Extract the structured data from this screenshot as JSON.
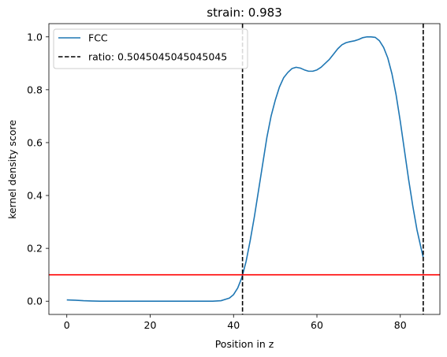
{
  "chart_data": {
    "type": "line",
    "title": "strain: 0.983",
    "xlabel": "Position in z",
    "ylabel": "kernel density score",
    "xlim": [
      -4.3,
      89.5
    ],
    "ylim": [
      -0.05,
      1.05
    ],
    "xticks": [
      0,
      20,
      40,
      60,
      80
    ],
    "yticks": [
      0.0,
      0.2,
      0.4,
      0.6,
      0.8,
      1.0
    ],
    "xtick_labels": [
      "0",
      "20",
      "40",
      "60",
      "80"
    ],
    "ytick_labels": [
      "0.0",
      "0.2",
      "0.4",
      "0.6",
      "0.8",
      "1.0"
    ],
    "grid": false,
    "legend_position": "top-left",
    "series": [
      {
        "name": "FCC",
        "color": "#1f77b4",
        "x": [
          0,
          2,
          4,
          6,
          8,
          10,
          15,
          20,
          25,
          30,
          35,
          37,
          39,
          40,
          41,
          42,
          43,
          44,
          45,
          46,
          47,
          48,
          49,
          50,
          51,
          52,
          53,
          54,
          55,
          56,
          57,
          58,
          59,
          60,
          61,
          62,
          63,
          64,
          65,
          66,
          67,
          68,
          69,
          70,
          71,
          72,
          73,
          74,
          75,
          76,
          77,
          78,
          79,
          80,
          81,
          82,
          83,
          84,
          85,
          85.5
        ],
        "y": [
          0.005,
          0.004,
          0.002,
          0.001,
          0.0,
          0.0,
          0.0,
          0.0,
          0.0,
          0.0,
          0.0,
          0.002,
          0.012,
          0.025,
          0.05,
          0.09,
          0.15,
          0.23,
          0.32,
          0.42,
          0.52,
          0.62,
          0.7,
          0.76,
          0.81,
          0.845,
          0.865,
          0.88,
          0.885,
          0.882,
          0.875,
          0.87,
          0.87,
          0.875,
          0.885,
          0.9,
          0.915,
          0.935,
          0.955,
          0.97,
          0.978,
          0.982,
          0.985,
          0.99,
          0.997,
          1.0,
          1.0,
          0.998,
          0.985,
          0.96,
          0.92,
          0.86,
          0.78,
          0.68,
          0.57,
          0.46,
          0.36,
          0.27,
          0.2,
          0.165
        ]
      }
    ],
    "vlines": [
      {
        "x": 42.15,
        "style": "dashed",
        "color": "#000000",
        "label": "ratio: 0.5045045045045045"
      },
      {
        "x": 85.5,
        "style": "dashed",
        "color": "#000000"
      }
    ],
    "hlines": [
      {
        "y": 0.1,
        "style": "solid",
        "color": "#ff0000"
      }
    ],
    "legend": [
      {
        "label": "FCC",
        "style": "solid",
        "color": "#1f77b4"
      },
      {
        "label": "ratio: 0.5045045045045045",
        "style": "dashed",
        "color": "#000000"
      }
    ]
  }
}
